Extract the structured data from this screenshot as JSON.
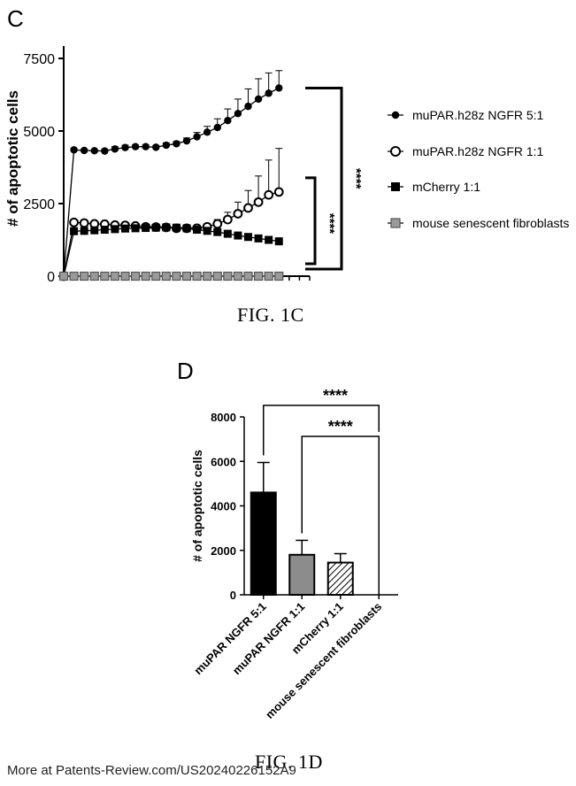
{
  "panel_c": {
    "letter": "C",
    "caption": "FIG. 1C"
  },
  "panel_d": {
    "letter": "D",
    "caption": "FIG. 1D"
  },
  "footer_text": "More at Patents-Review.com/US20240226152A9",
  "chart_data": [
    {
      "type": "line",
      "ylabel": "# of apoptotic cells",
      "xlabel": "",
      "ylim": [
        0,
        7500
      ],
      "yticks": [
        0,
        2500,
        5000,
        7500
      ],
      "x": [
        0,
        1,
        2,
        3,
        4,
        5,
        6,
        7,
        8,
        9,
        10,
        11,
        12,
        13,
        14,
        15,
        16,
        17,
        18,
        19,
        20,
        21,
        22,
        23,
        24
      ],
      "series": [
        {
          "name": "muPAR.h28z NGFR 5:1",
          "marker": "filled-circle",
          "color": "#000000",
          "values": [
            0,
            4350,
            4330,
            4320,
            4310,
            4380,
            4430,
            4460,
            4460,
            4440,
            4510,
            4560,
            4660,
            4800,
            4960,
            5120,
            5360,
            5600,
            5850,
            6100,
            6300,
            6480,
            null,
            null,
            null
          ],
          "errors": [
            0,
            60,
            40,
            40,
            60,
            80,
            80,
            60,
            60,
            60,
            80,
            80,
            100,
            150,
            200,
            300,
            400,
            500,
            600,
            700,
            700,
            600,
            null,
            null,
            null
          ]
        },
        {
          "name": "muPAR.h28z NGFR 1:1",
          "marker": "open-circle",
          "color": "#000000",
          "values": [
            0,
            1850,
            1830,
            1800,
            1790,
            1760,
            1750,
            1730,
            1700,
            1690,
            1680,
            1650,
            1650,
            1650,
            1700,
            1800,
            1950,
            2150,
            2350,
            2550,
            2800,
            2900,
            null,
            null,
            null
          ],
          "errors": [
            0,
            60,
            60,
            60,
            60,
            60,
            60,
            60,
            60,
            60,
            60,
            60,
            60,
            80,
            100,
            150,
            250,
            400,
            600,
            900,
            1200,
            1500,
            null,
            null,
            null
          ]
        },
        {
          "name": "mCherry 1:1",
          "marker": "filled-square",
          "color": "#000000",
          "values": [
            0,
            1550,
            1560,
            1580,
            1600,
            1620,
            1640,
            1650,
            1660,
            1670,
            1680,
            1670,
            1650,
            1600,
            1560,
            1520,
            1460,
            1400,
            1350,
            1300,
            1250,
            1200,
            null,
            null,
            null
          ],
          "errors": [
            0,
            60,
            60,
            60,
            60,
            60,
            60,
            60,
            60,
            60,
            60,
            60,
            60,
            60,
            60,
            80,
            80,
            80,
            80,
            80,
            80,
            80,
            null,
            null,
            null
          ]
        },
        {
          "name": "mouse senescent fibroblasts",
          "marker": "gray-square",
          "color": "#8c8c8c",
          "values": [
            0,
            0,
            0,
            0,
            0,
            0,
            0,
            0,
            0,
            0,
            0,
            0,
            0,
            0,
            0,
            0,
            0,
            0,
            0,
            0,
            0,
            0,
            null,
            null,
            null
          ],
          "errors": [
            0,
            0,
            0,
            0,
            0,
            0,
            0,
            0,
            0,
            0,
            0,
            0,
            0,
            0,
            0,
            0,
            0,
            0,
            0,
            0,
            0,
            0,
            null,
            null,
            null
          ]
        }
      ],
      "legend_position": "right",
      "significance": [
        {
          "label": "****",
          "between": [
            "muPAR.h28z NGFR 5:1",
            "mouse senescent fibroblasts"
          ]
        },
        {
          "label": "****",
          "between": [
            "muPAR.h28z NGFR 1:1",
            "mouse senescent fibroblasts"
          ]
        }
      ]
    },
    {
      "type": "bar",
      "ylabel": "# of apoptotic cells",
      "xlabel": "",
      "ylim": [
        0,
        8000
      ],
      "yticks": [
        0,
        2000,
        4000,
        6000,
        8000
      ],
      "categories": [
        "muPAR NGFR 5:1",
        "muPAR NGFR 1:1",
        "mCherry 1:1",
        "mouse senescent fibroblasts"
      ],
      "values": [
        4600,
        1800,
        1450,
        0
      ],
      "errors": [
        1350,
        650,
        400,
        0
      ],
      "fills": [
        "#000000",
        "#8c8c8c",
        "hatch",
        "#ffffff"
      ],
      "significance": [
        {
          "label": "****",
          "from": "muPAR NGFR 5:1",
          "to": "mouse senescent fibroblasts"
        },
        {
          "label": "****",
          "from": "muPAR NGFR 1:1",
          "to": "mouse senescent fibroblasts"
        }
      ]
    }
  ]
}
